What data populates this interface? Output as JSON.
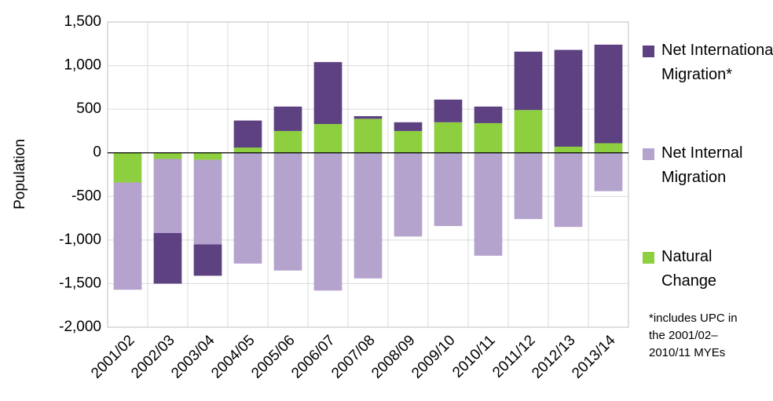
{
  "chart_data": {
    "type": "stacked-bar",
    "y_label": "Population",
    "note": "*includes UPC in the 2001/02–2010/11 MYEs",
    "categories": [
      "2001/02",
      "2002/03",
      "2003/04",
      "2004/05",
      "2005/06",
      "2006/07",
      "2007/08",
      "2008/09",
      "2009/10",
      "2010/11",
      "2011/12",
      "2012/13",
      "2013/14"
    ],
    "series": [
      {
        "name": "Natural Change",
        "color": "#8dcf3f",
        "values": [
          -340,
          -70,
          -80,
          60,
          250,
          330,
          390,
          250,
          350,
          340,
          490,
          70,
          110
        ]
      },
      {
        "name": "Net Internal Migration",
        "color": "#b4a3cd",
        "values": [
          -1230,
          -850,
          -970,
          -1270,
          -1350,
          -1580,
          -1440,
          -960,
          -840,
          -1180,
          -760,
          -850,
          -440
        ]
      },
      {
        "name": "Net International Migration*",
        "color": "#5d4181",
        "values": [
          0,
          -580,
          -360,
          310,
          280,
          710,
          30,
          100,
          260,
          190,
          670,
          1110,
          1130
        ]
      }
    ],
    "ylim": [
      -2000,
      1500
    ],
    "yticks": [
      {
        "value": -2000,
        "label": "-2,000"
      },
      {
        "value": -1500,
        "label": "-1,500"
      },
      {
        "value": -1000,
        "label": "-1,000"
      },
      -500,
      0,
      500,
      {
        "value": 1000,
        "label": "1,000"
      },
      {
        "value": 1500,
        "label": "1,500"
      }
    ],
    "grid": true
  }
}
